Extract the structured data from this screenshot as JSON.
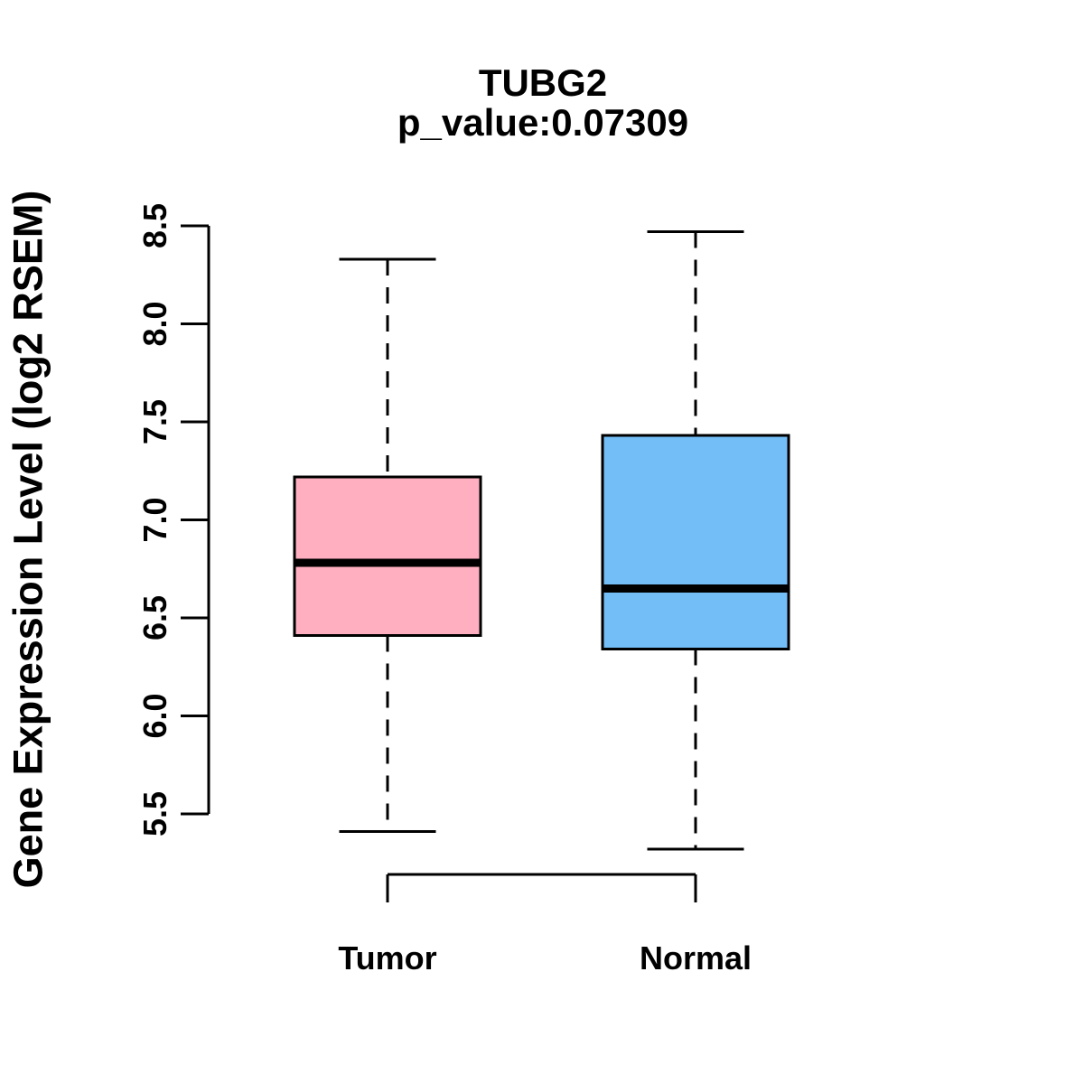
{
  "chart_data": {
    "type": "boxplot",
    "title": "TUBG2",
    "subtitle": "p_value:0.07309",
    "ylabel": "Gene Expression Level (log2 RSEM)",
    "xlabel": "",
    "categories": [
      "Tumor",
      "Normal"
    ],
    "y_tick_labels": [
      "8.5",
      "8.0",
      "7.5",
      "7.0",
      "6.5",
      "6.0",
      "5.5"
    ],
    "ylim": [
      5.5,
      8.5
    ],
    "grid": false,
    "legend": "none",
    "series": [
      {
        "name": "Tumor",
        "whisker_min": 5.41,
        "q1": 6.41,
        "median": 6.78,
        "q3": 7.22,
        "whisker_max": 8.33,
        "fill_color": "#FFAFC0"
      },
      {
        "name": "Normal",
        "whisker_min": 5.32,
        "q1": 6.34,
        "median": 6.65,
        "q3": 7.43,
        "whisker_max": 8.47,
        "fill_color": "#74BEF8"
      }
    ],
    "colors": {
      "line": "#000000",
      "background": "#FFFFFF"
    }
  }
}
